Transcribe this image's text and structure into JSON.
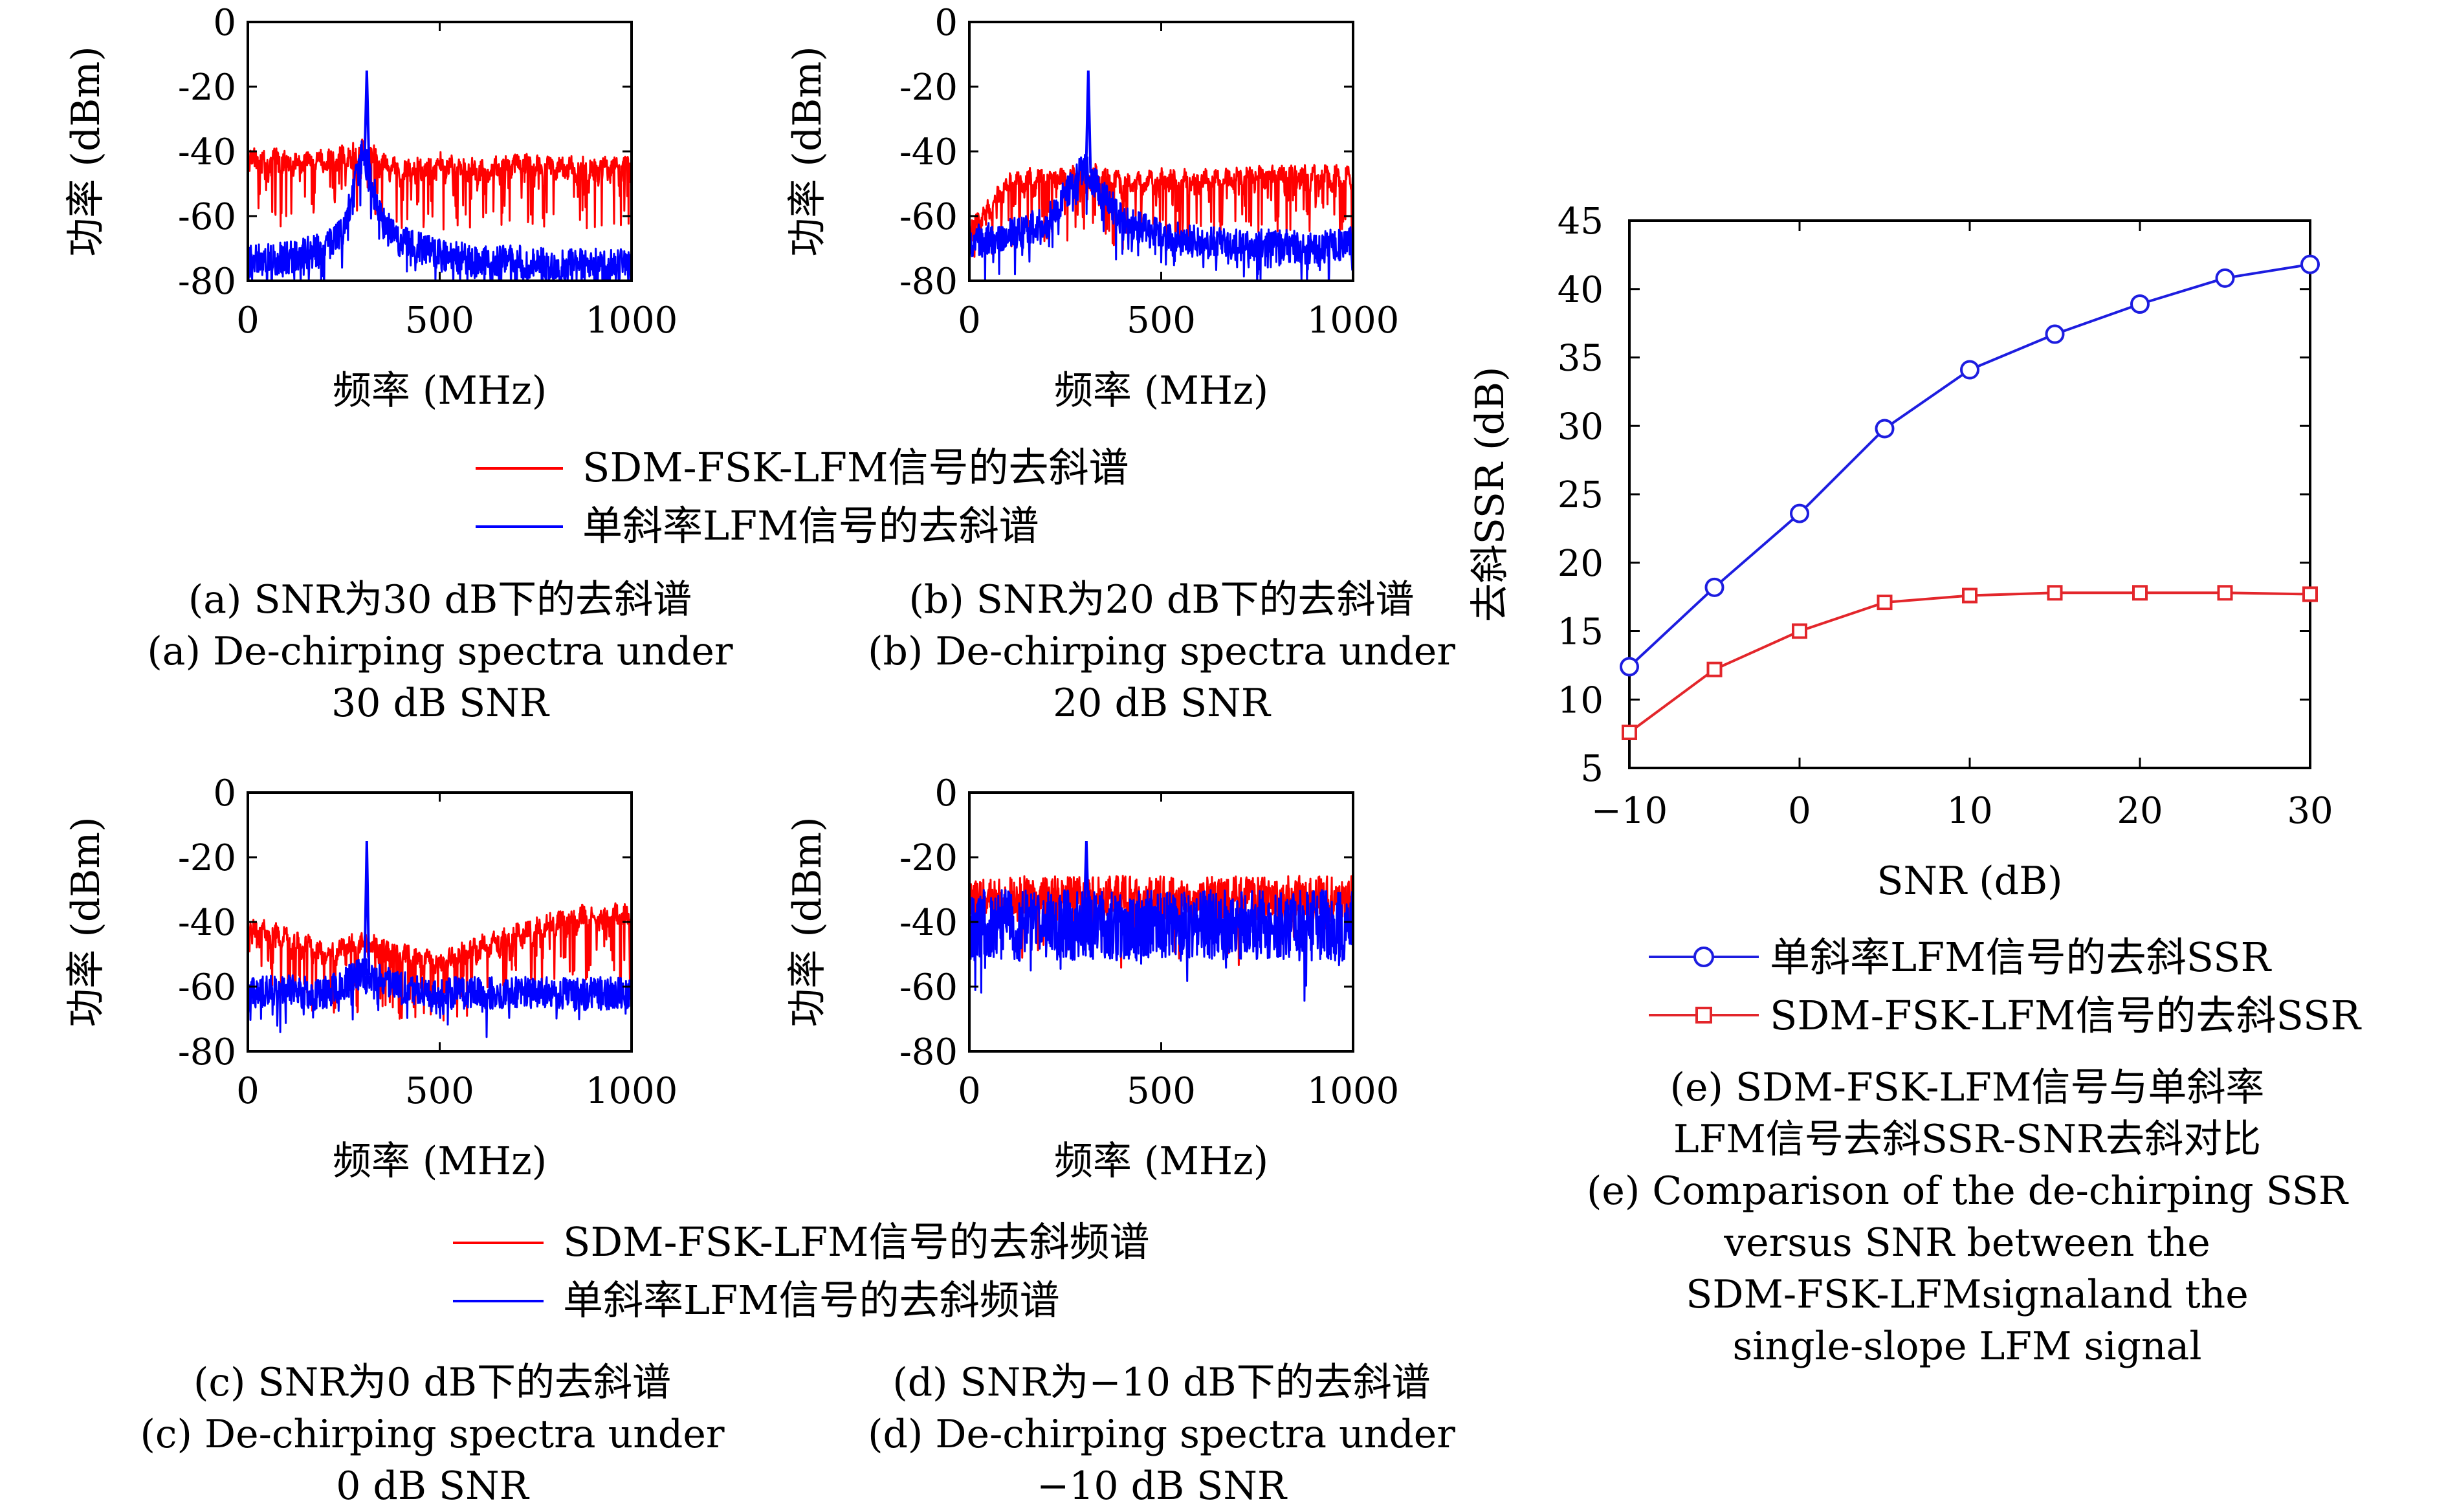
{
  "figure": {
    "spectrum_ylabel": "功率 (dBm)",
    "spectrum_xlabel": "频率 (MHz)",
    "legend_top": {
      "red": "SDM-FSK-LFM信号的去斜谱",
      "blue": "单斜率LFM信号的去斜谱"
    },
    "legend_bottom": {
      "red": "SDM-FSK-LFM信号的去斜频谱",
      "blue": "单斜率LFM信号的去斜频谱"
    },
    "captions": {
      "a": [
        "(a) SNR为30 dB下的去斜谱",
        "(a) De-chirping spectra under",
        "30 dB SNR"
      ],
      "b": [
        "(b) SNR为20 dB下的去斜谱",
        "(b) De-chirping spectra under",
        "20 dB SNR"
      ],
      "c": [
        "(c) SNR为0 dB下的去斜谱",
        "(c) De-chirping spectra under",
        "0 dB SNR"
      ],
      "d": [
        "(d) SNR为−10 dB下的去斜谱",
        "(d) De-chirping spectra under",
        "−10 dB SNR"
      ],
      "e": [
        "(e) SDM-FSK-LFM信号与单斜率",
        "LFM信号去斜SSR-SNR去斜对比",
        "(e) Comparison of the de-chirping SSR",
        "versus SNR between the",
        "SDM-FSK-LFMsignaland the",
        "single-slope LFM signal"
      ]
    }
  },
  "colors": {
    "red": "#ff0000",
    "blue": "#0000ff",
    "ssr_red": "#e3262b",
    "ssr_blue": "#1d1de0"
  },
  "chart_data": [
    {
      "id": "a",
      "type": "line",
      "xlim": [
        0,
        1000
      ],
      "ylim": [
        -80,
        0
      ],
      "xticks": [
        0,
        500,
        1000
      ],
      "yticks": [
        0,
        -20,
        -40,
        -60,
        -80
      ],
      "peak": {
        "x": 310,
        "y": -15
      },
      "series": [
        {
          "name": "SDM-FSK-LFM信号的去斜谱",
          "color": "red",
          "envelope_x": [
            0,
            100,
            200,
            300,
            400,
            500,
            600,
            700,
            800,
            900,
            1000
          ],
          "envelope_y": [
            -42,
            -43,
            -43,
            -40,
            -46,
            -44,
            -46,
            -44,
            -45,
            -45,
            -45
          ]
        },
        {
          "name": "单斜率LFM信号的去斜谱",
          "color": "blue",
          "envelope_x": [
            0,
            100,
            200,
            250,
            300,
            350,
            400,
            500,
            600,
            700,
            800,
            900,
            1000
          ],
          "envelope_y": [
            -74,
            -73,
            -70,
            -64,
            -40,
            -62,
            -68,
            -72,
            -74,
            -74,
            -75,
            -75,
            -75
          ]
        }
      ]
    },
    {
      "id": "b",
      "type": "line",
      "xlim": [
        0,
        1000
      ],
      "ylim": [
        -80,
        0
      ],
      "xticks": [
        0,
        500,
        1000
      ],
      "yticks": [
        0,
        -20,
        -40,
        -60,
        -80
      ],
      "peak": {
        "x": 310,
        "y": -15
      },
      "series": [
        {
          "name": "SDM-FSK-LFM信号的去斜谱",
          "color": "red",
          "envelope_x": [
            0,
            50,
            100,
            200,
            300,
            400,
            500,
            600,
            700,
            800,
            900,
            1000
          ],
          "envelope_y": [
            -64,
            -58,
            -50,
            -48,
            -47,
            -50,
            -49,
            -49,
            -48,
            -47,
            -48,
            -48
          ]
        },
        {
          "name": "单斜率LFM信号的去斜谱",
          "color": "blue",
          "envelope_x": [
            0,
            100,
            200,
            300,
            400,
            500,
            600,
            700,
            800,
            900,
            1000
          ],
          "envelope_y": [
            -68,
            -66,
            -62,
            -45,
            -62,
            -66,
            -68,
            -69,
            -69,
            -70,
            -68
          ]
        }
      ]
    },
    {
      "id": "c",
      "type": "line",
      "xlim": [
        0,
        1000
      ],
      "ylim": [
        -80,
        0
      ],
      "xticks": [
        0,
        500,
        1000
      ],
      "yticks": [
        0,
        -20,
        -40,
        -60,
        -80
      ],
      "peak": {
        "x": 310,
        "y": -15
      },
      "series": [
        {
          "name": "SDM-FSK-LFM信号的去斜频谱",
          "color": "red",
          "envelope_x": [
            0,
            100,
            200,
            300,
            400,
            500,
            600,
            700,
            800,
            900,
            1000
          ],
          "envelope_y": [
            -42,
            -45,
            -50,
            -46,
            -50,
            -53,
            -48,
            -44,
            -40,
            -38,
            -38
          ]
        },
        {
          "name": "单斜率LFM信号的去斜频谱",
          "color": "blue",
          "envelope_x": [
            0,
            100,
            200,
            300,
            400,
            500,
            600,
            700,
            800,
            900,
            1000
          ],
          "envelope_y": [
            -62,
            -61,
            -62,
            -56,
            -60,
            -62,
            -62,
            -62,
            -62,
            -62,
            -62
          ]
        }
      ]
    },
    {
      "id": "d",
      "type": "line",
      "xlim": [
        0,
        1000
      ],
      "ylim": [
        -80,
        0
      ],
      "xticks": [
        0,
        500,
        1000
      ],
      "yticks": [
        0,
        -20,
        -40,
        -60,
        -80
      ],
      "peak": {
        "x": 305,
        "y": -15
      },
      "series": [
        {
          "name": "SDM-FSK-LFM信号的去斜频谱",
          "color": "red",
          "envelope_x": [
            0,
            250,
            500,
            750,
            1000
          ],
          "envelope_y": [
            -32,
            -32,
            -32,
            -32,
            -32
          ]
        },
        {
          "name": "单斜率LFM信号的去斜频谱",
          "color": "blue",
          "envelope_x": [
            0,
            250,
            500,
            750,
            1000
          ],
          "envelope_y": [
            -40,
            -40,
            -40,
            -40,
            -40
          ]
        }
      ]
    },
    {
      "id": "e",
      "type": "line",
      "xlabel": "SNR (dB)",
      "ylabel": "去斜SSR (dB)",
      "xlim": [
        -10,
        30
      ],
      "ylim": [
        5,
        45
      ],
      "xticks": [
        -10,
        0,
        10,
        20,
        30
      ],
      "yticks": [
        5,
        10,
        15,
        20,
        25,
        30,
        35,
        40,
        45
      ],
      "x": [
        -10,
        -5,
        0,
        5,
        10,
        15,
        20,
        25,
        30
      ],
      "series": [
        {
          "name": "单斜率LFM信号的去斜SSR",
          "marker": "circle",
          "color": "ssr_blue",
          "values": [
            12.4,
            18.2,
            23.6,
            29.8,
            34.1,
            36.7,
            38.9,
            40.8,
            41.8
          ]
        },
        {
          "name": "SDM-FSK-LFM信号的去斜SSR",
          "marker": "square",
          "color": "ssr_red",
          "values": [
            7.6,
            12.2,
            15.0,
            17.1,
            17.6,
            17.8,
            17.8,
            17.8,
            17.7
          ]
        }
      ]
    }
  ]
}
